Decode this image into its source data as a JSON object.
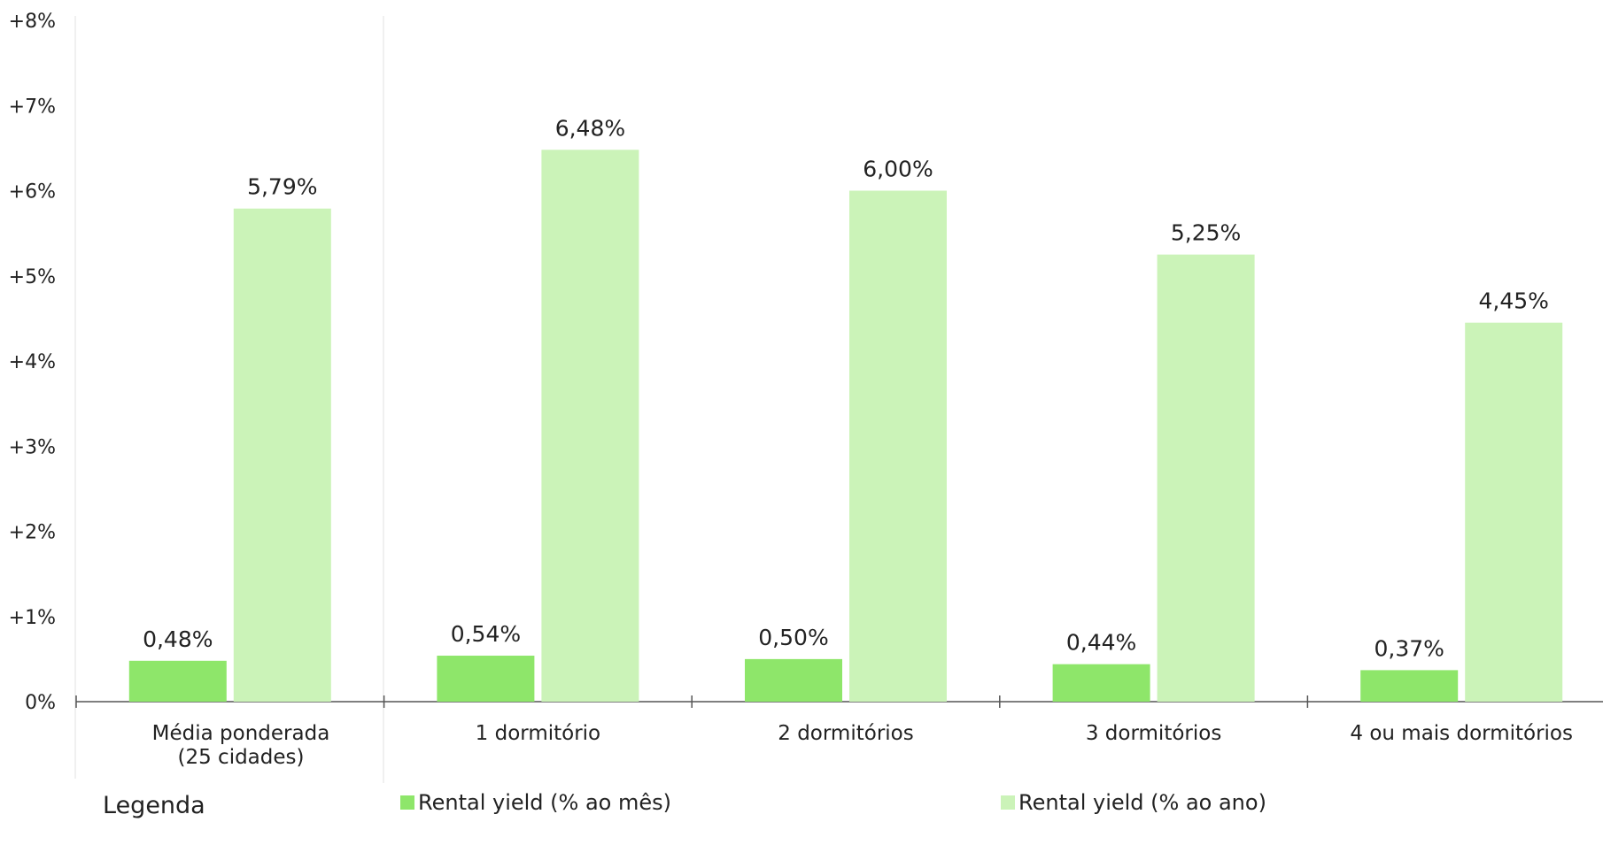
{
  "chart_data": {
    "type": "bar",
    "categories": [
      [
        "Média ponderada",
        "(25 cidades)"
      ],
      [
        "1 dormitório"
      ],
      [
        "2 dormitórios"
      ],
      [
        "3 dormitórios"
      ],
      [
        "4 ou mais dormitórios"
      ]
    ],
    "series": [
      {
        "name": "Rental yield (% ao mês)",
        "color": "#8ee66a",
        "values": [
          0.48,
          0.54,
          0.5,
          0.44,
          0.37
        ],
        "labels": [
          "0,48%",
          "0,54%",
          "0,50%",
          "0,44%",
          "0,37%"
        ]
      },
      {
        "name": "Rental yield (% ao ano)",
        "color": "#cbf3b8",
        "values": [
          5.79,
          6.48,
          6.0,
          5.25,
          4.45
        ],
        "labels": [
          "5,79%",
          "6,48%",
          "6,00%",
          "5,25%",
          "4,45%"
        ]
      }
    ],
    "ylim": [
      0,
      8
    ],
    "yticks": [
      0,
      1,
      2,
      3,
      4,
      5,
      6,
      7,
      8
    ],
    "ytick_labels": [
      "0%",
      "+1%",
      "+2%",
      "+3%",
      "+4%",
      "+5%",
      "+6%",
      "+7%",
      "+8%"
    ],
    "legend": {
      "title": "Legenda",
      "position": "bottom"
    },
    "grid": false
  }
}
